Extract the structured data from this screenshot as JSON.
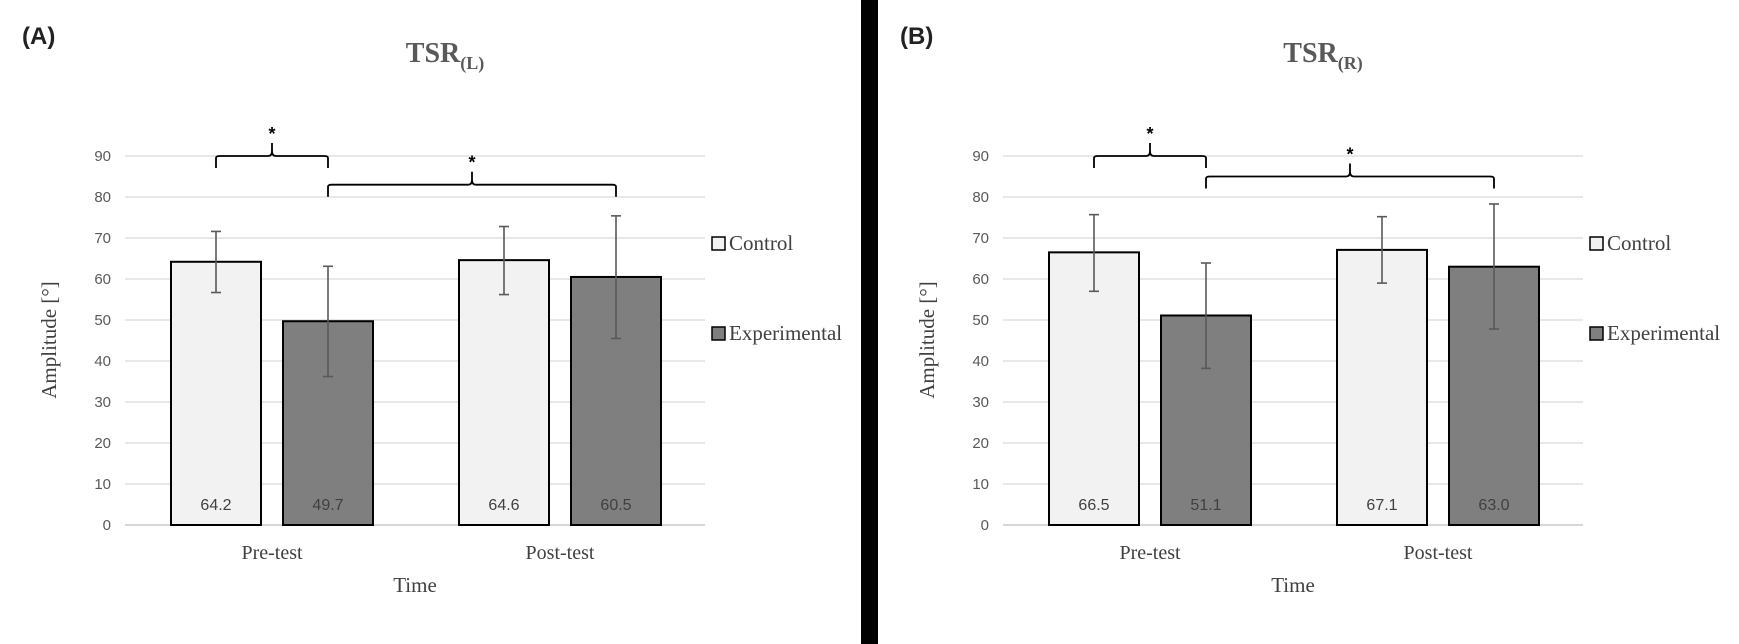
{
  "chart_data": [
    {
      "type": "bar",
      "panel_label": "(A)",
      "title": "TSR",
      "title_subscript": "(L)",
      "categories": [
        "Pre-test",
        "Post-test"
      ],
      "series": [
        {
          "name": "Control",
          "values": [
            64.2,
            64.6
          ],
          "error_low": [
            56.7,
            56.2
          ],
          "error_high": [
            71.6,
            72.8
          ],
          "color": "#f2f2f2"
        },
        {
          "name": "Experimental",
          "values": [
            49.7,
            60.5
          ],
          "error_low": [
            36.2,
            45.5
          ],
          "error_high": [
            63.1,
            75.4
          ],
          "color": "#7f7f7f"
        }
      ],
      "data_labels": [
        [
          "64.2",
          "64.6"
        ],
        [
          "49.7",
          "60.5"
        ]
      ],
      "xlabel": "Time",
      "ylabel": "Amplitude [°]",
      "ylim": [
        0,
        90
      ],
      "yticks": [
        "0",
        "10",
        "20",
        "30",
        "40",
        "50",
        "60",
        "70",
        "80",
        "90"
      ],
      "grid": true,
      "legend": "right",
      "significance": [
        {
          "label": "*",
          "from": {
            "category": 0,
            "series": 0
          },
          "to": {
            "category": 0,
            "series": 1
          },
          "level": 90
        },
        {
          "label": "*",
          "from": {
            "category": 0,
            "series": 1
          },
          "to": {
            "category": 1,
            "series": 1
          },
          "level": 83
        }
      ]
    },
    {
      "type": "bar",
      "panel_label": "(B)",
      "title": "TSR",
      "title_subscript": "(R)",
      "categories": [
        "Pre-test",
        "Post-test"
      ],
      "series": [
        {
          "name": "Control",
          "values": [
            66.5,
            67.1
          ],
          "error_low": [
            57.0,
            59.0
          ],
          "error_high": [
            75.7,
            75.2
          ],
          "color": "#f2f2f2"
        },
        {
          "name": "Experimental",
          "values": [
            51.1,
            63.0
          ],
          "error_low": [
            38.2,
            47.8
          ],
          "error_high": [
            63.9,
            78.3
          ],
          "color": "#7f7f7f"
        }
      ],
      "data_labels": [
        [
          "66.5",
          "67.1"
        ],
        [
          "51.1",
          "63.0"
        ]
      ],
      "xlabel": "Time",
      "ylabel": "Amplitude [°]",
      "ylim": [
        0,
        90
      ],
      "yticks": [
        "0",
        "10",
        "20",
        "30",
        "40",
        "50",
        "60",
        "70",
        "80",
        "90"
      ],
      "grid": true,
      "legend": "right",
      "significance": [
        {
          "label": "*",
          "from": {
            "category": 0,
            "series": 0
          },
          "to": {
            "category": 0,
            "series": 1
          },
          "level": 90
        },
        {
          "label": "*",
          "from": {
            "category": 0,
            "series": 1
          },
          "to": {
            "category": 1,
            "series": 1
          },
          "level": 85
        }
      ]
    }
  ]
}
